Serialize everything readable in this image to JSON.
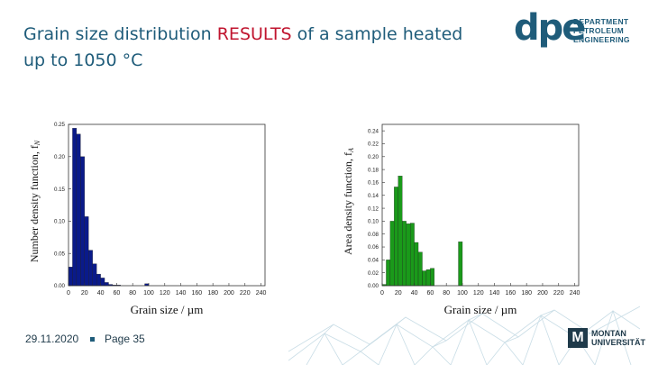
{
  "slide": {
    "title_line1_before": "Grain size distribution ",
    "title_highlight": "RESULTS",
    "title_line1_after": " of a sample heated",
    "title_line2": "up to 1050 °C"
  },
  "logo": {
    "mark": "dpe",
    "line1": "DEPARTMENT",
    "line2": "PETROLEUM",
    "line3": "ENGINEERING"
  },
  "footer": {
    "date": "29.11.2020",
    "page": "Page 35",
    "university_mark": "M",
    "university_line1": "MONTAN",
    "university_line2": "UNIVERSITÄT"
  },
  "colors": {
    "title": "#1f5c7a",
    "highlight": "#c0152f",
    "number_bars": "#0a1a8a",
    "area_bars": "#1a9a1a"
  },
  "chart_data": [
    {
      "type": "bar",
      "xlabel": "Grain size / µm",
      "ylabel": "Number density function, f",
      "ylabel_sub": "N",
      "xlim": [
        0,
        245
      ],
      "ylim": [
        0,
        0.25
      ],
      "x_ticks": [
        0,
        20,
        40,
        60,
        80,
        100,
        120,
        140,
        160,
        180,
        200,
        220,
        240
      ],
      "y_ticks": [
        0.0,
        0.05,
        0.1,
        0.15,
        0.2,
        0.25
      ],
      "y_tick_labels": [
        "0.00",
        "0.05",
        "0.10",
        "0.15",
        "0.20",
        "0.25"
      ],
      "bin_width": 5,
      "bins": [
        {
          "x": 0,
          "value": 0.029
        },
        {
          "x": 5,
          "value": 0.244
        },
        {
          "x": 10,
          "value": 0.235
        },
        {
          "x": 15,
          "value": 0.2
        },
        {
          "x": 20,
          "value": 0.107
        },
        {
          "x": 25,
          "value": 0.055
        },
        {
          "x": 30,
          "value": 0.034
        },
        {
          "x": 35,
          "value": 0.018
        },
        {
          "x": 40,
          "value": 0.012
        },
        {
          "x": 45,
          "value": 0.005
        },
        {
          "x": 50,
          "value": 0.002
        },
        {
          "x": 55,
          "value": 0.001
        },
        {
          "x": 60,
          "value": 0.001
        },
        {
          "x": 95,
          "value": 0.003
        }
      ],
      "grid": false
    },
    {
      "type": "bar",
      "xlabel": "Grain size / µm",
      "ylabel": "Area density function, f",
      "ylabel_sub": "A",
      "xlim": [
        0,
        245
      ],
      "ylim": [
        0,
        0.25
      ],
      "x_ticks": [
        0,
        20,
        40,
        60,
        80,
        100,
        120,
        140,
        160,
        180,
        200,
        220,
        240
      ],
      "y_ticks": [
        0.0,
        0.02,
        0.04,
        0.06,
        0.08,
        0.1,
        0.12,
        0.14,
        0.16,
        0.18,
        0.2,
        0.22,
        0.24
      ],
      "y_tick_labels": [
        "0.00",
        "0.02",
        "0.04",
        "0.06",
        "0.08",
        "0.10",
        "0.12",
        "0.14",
        "0.16",
        "0.18",
        "0.20",
        "0.22",
        "0.24"
      ],
      "bin_width": 5,
      "bins": [
        {
          "x": 0,
          "value": 0.002
        },
        {
          "x": 5,
          "value": 0.04
        },
        {
          "x": 10,
          "value": 0.1
        },
        {
          "x": 15,
          "value": 0.153
        },
        {
          "x": 20,
          "value": 0.17
        },
        {
          "x": 25,
          "value": 0.1
        },
        {
          "x": 30,
          "value": 0.096
        },
        {
          "x": 35,
          "value": 0.097
        },
        {
          "x": 40,
          "value": 0.067
        },
        {
          "x": 45,
          "value": 0.052
        },
        {
          "x": 50,
          "value": 0.023
        },
        {
          "x": 55,
          "value": 0.025
        },
        {
          "x": 60,
          "value": 0.027
        },
        {
          "x": 95,
          "value": 0.068
        }
      ],
      "grid": false
    }
  ]
}
